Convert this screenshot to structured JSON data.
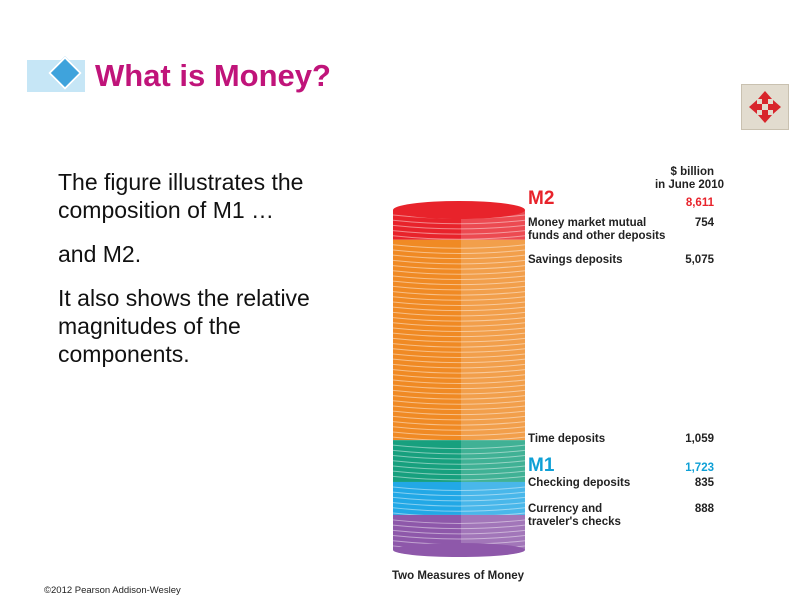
{
  "slide": {
    "title": "What is Money?",
    "paragraphs": [
      "The figure illustrates the composition of M1 …",
      "and M2.",
      "It also shows the relative magnitudes of the components."
    ],
    "copyright": "©2012 Pearson Addison-Wesley",
    "nav_icon": "four-way-arrows-icon"
  },
  "colors": {
    "title": "#c0147a",
    "accent": "#3fa3dc",
    "m2": "#e8232b",
    "m1": "#0fa0d6",
    "money_market": "#e8232b",
    "savings": "#f08a24",
    "time": "#17a07e",
    "checking": "#22a8e6",
    "currency": "#8e58aa"
  },
  "chart_data": {
    "type": "bar",
    "title": "Two Measures of Money",
    "value_header": [
      "$ billion",
      "in June 2010"
    ],
    "totals": [
      {
        "name": "M2",
        "value": "8,611"
      },
      {
        "name": "M1",
        "value": "1,723"
      }
    ],
    "components": [
      {
        "label": [
          "Money market mutual",
          "funds and other deposits"
        ],
        "value": 754,
        "value_text": "754"
      },
      {
        "label": [
          "Savings deposits"
        ],
        "value": 5075,
        "value_text": "5,075"
      },
      {
        "label": [
          "Time deposits"
        ],
        "value": 1059,
        "value_text": "1,059"
      },
      {
        "label": [
          "Checking deposits"
        ],
        "value": 835,
        "value_text": "835"
      },
      {
        "label": [
          "Currency and",
          "traveler's checks"
        ],
        "value": 888,
        "value_text": "888"
      }
    ]
  }
}
